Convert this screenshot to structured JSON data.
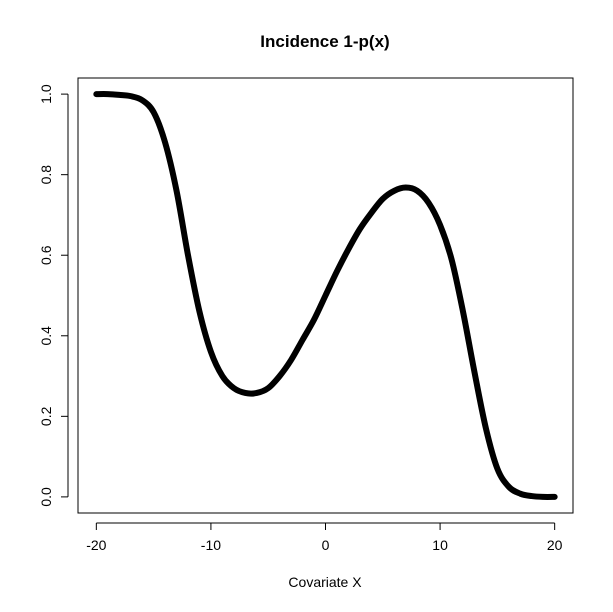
{
  "chart_data": {
    "type": "line",
    "title": "Incidence 1-p(x)",
    "xlabel": "Covariate X",
    "ylabel": "",
    "xlim": [
      -21.6,
      21.6
    ],
    "ylim": [
      -0.04,
      1.04
    ],
    "x_ticks": [
      -20,
      -10,
      0,
      10,
      20
    ],
    "x_tick_labels": [
      "-20",
      "-10",
      "0",
      "10",
      "20"
    ],
    "y_ticks": [
      0.0,
      0.2,
      0.4,
      0.6,
      0.8,
      1.0
    ],
    "y_tick_labels": [
      "0.0",
      "0.2",
      "0.4",
      "0.6",
      "0.8",
      "1.0"
    ],
    "grid": false,
    "series": [
      {
        "color": "#000000",
        "x": [
          -20,
          -19,
          -18,
          -17,
          -16,
          -15,
          -14,
          -13,
          -12,
          -11,
          -10,
          -9,
          -8,
          -7,
          -6,
          -5,
          -4,
          -3,
          -2,
          -1,
          0,
          1,
          2,
          3,
          4,
          5,
          6,
          7,
          8,
          9,
          10,
          11,
          12,
          13,
          14,
          15,
          16,
          17,
          18,
          19,
          20
        ],
        "y": [
          1.0,
          1.0,
          0.998,
          0.995,
          0.985,
          0.955,
          0.88,
          0.76,
          0.6,
          0.46,
          0.36,
          0.3,
          0.27,
          0.258,
          0.258,
          0.27,
          0.3,
          0.34,
          0.39,
          0.44,
          0.5,
          0.56,
          0.615,
          0.665,
          0.705,
          0.74,
          0.76,
          0.768,
          0.76,
          0.73,
          0.675,
          0.59,
          0.46,
          0.31,
          0.17,
          0.07,
          0.025,
          0.008,
          0.002,
          0.0,
          0.0
        ]
      }
    ]
  }
}
